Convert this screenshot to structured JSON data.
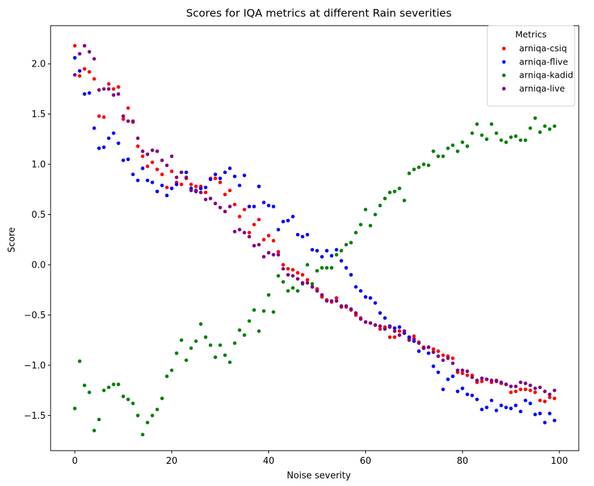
{
  "chart_data": {
    "type": "scatter",
    "title": "Scores for IQA metrics at different Rain severities",
    "xlabel": "Noise severity",
    "ylabel": "Score",
    "xlim": [
      -5,
      104
    ],
    "ylim": [
      -1.85,
      2.38
    ],
    "xticks": [
      0,
      20,
      40,
      60,
      80,
      100
    ],
    "yticks": [
      -1.5,
      -1.0,
      -0.5,
      0.0,
      0.5,
      1.0,
      1.5,
      2.0
    ],
    "ytick_labels": [
      "−1.5",
      "−1.0",
      "−0.5",
      "0.0",
      "0.5",
      "1.0",
      "1.5",
      "2.0"
    ],
    "grid": false,
    "legend": {
      "title": "Metrics",
      "placement": "top-right"
    },
    "x": [
      0,
      1,
      2,
      3,
      4,
      5,
      6,
      7,
      8,
      9,
      10,
      11,
      12,
      13,
      14,
      15,
      16,
      17,
      18,
      19,
      20,
      21,
      22,
      23,
      24,
      25,
      26,
      27,
      28,
      29,
      30,
      31,
      32,
      33,
      34,
      35,
      36,
      37,
      38,
      39,
      40,
      41,
      42,
      43,
      44,
      45,
      46,
      47,
      48,
      49,
      50,
      51,
      52,
      53,
      54,
      55,
      56,
      57,
      58,
      59,
      60,
      61,
      62,
      63,
      64,
      65,
      66,
      67,
      68,
      69,
      70,
      71,
      72,
      73,
      74,
      75,
      76,
      77,
      78,
      79,
      80,
      81,
      82,
      83,
      84,
      85,
      86,
      87,
      88,
      89,
      90,
      91,
      92,
      93,
      94,
      95,
      96,
      97,
      98,
      99
    ],
    "series": [
      {
        "name": "arniqa-csiq",
        "color": "#ff0000",
        "values": [
          2.18,
          1.88,
          1.95,
          1.92,
          1.85,
          1.48,
          1.47,
          1.8,
          1.75,
          1.77,
          1.45,
          1.56,
          1.42,
          1.18,
          1.08,
          0.98,
          1.02,
          0.95,
          0.9,
          0.77,
          0.93,
          0.82,
          0.8,
          0.86,
          0.8,
          0.78,
          0.78,
          0.72,
          0.86,
          0.86,
          0.82,
          0.7,
          0.74,
          0.6,
          0.48,
          0.55,
          0.32,
          0.4,
          0.45,
          0.25,
          0.29,
          0.24,
          0.13,
          0.0,
          -0.04,
          -0.05,
          -0.08,
          -0.1,
          -0.15,
          -0.22,
          -0.24,
          -0.32,
          -0.35,
          -0.37,
          -0.33,
          -0.42,
          -0.42,
          -0.45,
          -0.5,
          -0.53,
          -0.57,
          -0.58,
          -0.6,
          -0.64,
          -0.62,
          -0.72,
          -0.72,
          -0.66,
          -0.66,
          -0.73,
          -0.71,
          -0.77,
          -0.82,
          -0.82,
          -0.84,
          -0.86,
          -0.9,
          -0.91,
          -0.93,
          -1.07,
          -1.08,
          -1.1,
          -1.1,
          -1.17,
          -1.16,
          -1.14,
          -1.17,
          -1.15,
          -1.18,
          -1.19,
          -1.27,
          -1.26,
          -1.24,
          -1.24,
          -1.25,
          -1.27,
          -1.35,
          -1.36,
          -1.32,
          -1.33
        ]
      },
      {
        "name": "arniqa-flive",
        "color": "#0000ff",
        "values": [
          2.06,
          1.93,
          1.7,
          1.71,
          1.36,
          1.16,
          1.17,
          1.26,
          1.31,
          1.21,
          1.04,
          1.05,
          0.9,
          0.84,
          0.96,
          0.84,
          0.82,
          0.73,
          0.79,
          0.69,
          0.76,
          0.8,
          0.92,
          0.92,
          0.76,
          0.73,
          0.76,
          0.77,
          0.85,
          0.9,
          0.86,
          0.92,
          0.96,
          0.88,
          0.79,
          0.89,
          0.58,
          0.58,
          0.78,
          0.62,
          0.59,
          0.58,
          0.35,
          0.43,
          0.44,
          0.48,
          0.3,
          0.28,
          0.3,
          0.15,
          0.14,
          0.08,
          0.14,
          0.09,
          0.15,
          0.04,
          -0.03,
          -0.1,
          -0.22,
          -0.26,
          -0.32,
          -0.33,
          -0.38,
          -0.48,
          -0.53,
          -0.61,
          -0.63,
          -0.62,
          -0.68,
          -0.72,
          -0.76,
          -0.86,
          -0.83,
          -0.88,
          -1.01,
          -1.07,
          -1.24,
          -1.14,
          -1.11,
          -1.26,
          -1.23,
          -1.29,
          -1.3,
          -1.34,
          -1.44,
          -1.42,
          -1.35,
          -1.45,
          -1.4,
          -1.42,
          -1.43,
          -1.4,
          -1.46,
          -1.35,
          -1.38,
          -1.49,
          -1.48,
          -1.57,
          -1.48,
          -1.55
        ]
      },
      {
        "name": "arniqa-kadid",
        "color": "#008000",
        "values": [
          -1.43,
          -0.96,
          -1.2,
          -1.27,
          -1.65,
          -1.54,
          -1.25,
          -1.22,
          -1.19,
          -1.19,
          -1.31,
          -1.34,
          -1.38,
          -1.5,
          -1.69,
          -1.57,
          -1.5,
          -1.44,
          -1.33,
          -1.11,
          -1.05,
          -0.88,
          -0.75,
          -0.95,
          -0.83,
          -0.76,
          -0.59,
          -0.72,
          -0.8,
          -0.92,
          -0.8,
          -0.9,
          -0.97,
          -0.78,
          -0.65,
          -0.7,
          -0.56,
          -0.45,
          -0.66,
          -0.46,
          -0.3,
          -0.47,
          -0.11,
          -0.17,
          -0.26,
          -0.23,
          -0.26,
          -0.19,
          0.0,
          -0.19,
          -0.06,
          -0.03,
          -0.03,
          -0.03,
          0.1,
          0.14,
          0.2,
          0.22,
          0.32,
          0.4,
          0.55,
          0.39,
          0.5,
          0.59,
          0.66,
          0.72,
          0.73,
          0.76,
          0.64,
          0.91,
          0.95,
          0.97,
          1.0,
          0.99,
          1.13,
          1.08,
          1.08,
          1.16,
          1.19,
          1.13,
          1.22,
          1.18,
          1.31,
          1.4,
          1.29,
          1.25,
          1.4,
          1.31,
          1.24,
          1.22,
          1.27,
          1.28,
          1.24,
          1.24,
          1.36,
          1.46,
          1.32,
          1.38,
          1.35,
          1.38
        ]
      },
      {
        "name": "arniqa-live",
        "color": "#800080",
        "values": [
          1.89,
          2.1,
          2.18,
          2.12,
          2.05,
          1.74,
          1.75,
          1.75,
          1.69,
          1.7,
          1.48,
          1.43,
          1.43,
          1.26,
          1.13,
          1.1,
          1.14,
          1.13,
          1.04,
          0.99,
          1.08,
          0.87,
          0.92,
          0.87,
          0.74,
          0.74,
          0.72,
          0.65,
          0.66,
          0.61,
          0.57,
          0.53,
          0.58,
          0.33,
          0.35,
          0.32,
          0.28,
          0.19,
          0.2,
          0.08,
          0.12,
          0.1,
          0.1,
          -0.04,
          -0.1,
          -0.11,
          -0.14,
          -0.18,
          -0.18,
          -0.22,
          -0.26,
          -0.3,
          -0.36,
          -0.36,
          -0.36,
          -0.41,
          -0.41,
          -0.44,
          -0.48,
          -0.54,
          -0.57,
          -0.58,
          -0.6,
          -0.61,
          -0.64,
          -0.62,
          -0.66,
          -0.7,
          -0.66,
          -0.75,
          -0.74,
          -0.78,
          -0.83,
          -0.82,
          -0.87,
          -0.91,
          -0.95,
          -0.93,
          -0.98,
          -1.05,
          -1.05,
          -1.06,
          -1.12,
          -1.15,
          -1.13,
          -1.14,
          -1.15,
          -1.16,
          -1.17,
          -1.19,
          -1.21,
          -1.21,
          -1.17,
          -1.18,
          -1.2,
          -1.23,
          -1.22,
          -1.26,
          -1.29,
          -1.25
        ]
      }
    ]
  }
}
